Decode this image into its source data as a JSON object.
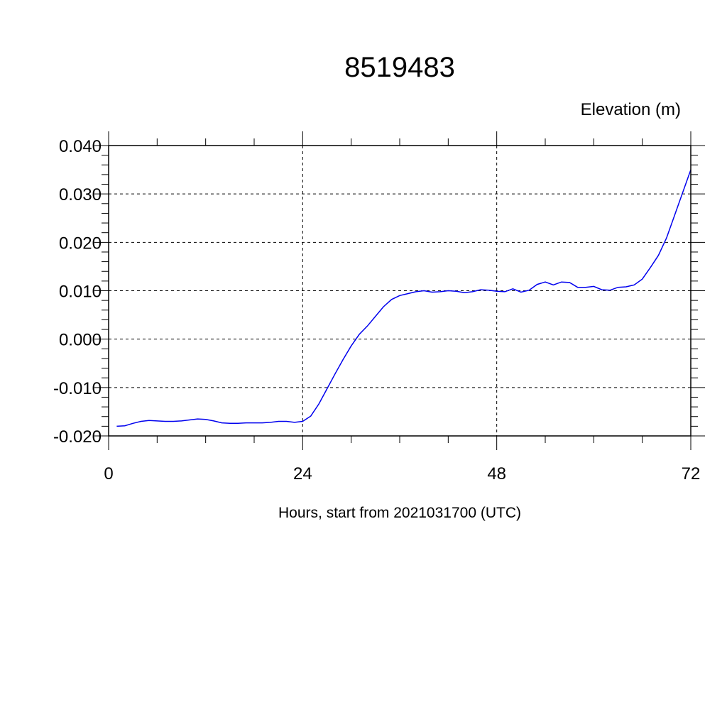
{
  "chart_data": {
    "type": "line",
    "title": "8519483",
    "ylabel": "Elevation (m)",
    "xlabel": "Hours, start from 2021031700 (UTC)",
    "xlim": [
      0,
      72
    ],
    "ylim": [
      -0.02,
      0.04
    ],
    "xticks": [
      0,
      24,
      48,
      72
    ],
    "xtick_labels": [
      "0",
      "24",
      "48",
      "72"
    ],
    "yticks": [
      -0.02,
      -0.01,
      0.0,
      0.01,
      0.02,
      0.03,
      0.04
    ],
    "ytick_labels": [
      "-0.020",
      "-0.010",
      "0.000",
      "0.010",
      "0.020",
      "0.030",
      "0.040"
    ],
    "grid": true,
    "line_color": "#0000ee",
    "series": [
      {
        "x": [
          1,
          2,
          3,
          4,
          5,
          6,
          7,
          8,
          9,
          10,
          11,
          12,
          13,
          14,
          15,
          16,
          17,
          18,
          19,
          20,
          21,
          22,
          23,
          24,
          25,
          26,
          27,
          28,
          29,
          30,
          31,
          32,
          33,
          34,
          35,
          36,
          37,
          38,
          39,
          40,
          41,
          42,
          43,
          44,
          45,
          46,
          47,
          48,
          49,
          50,
          51,
          52,
          53,
          54,
          55,
          56,
          57,
          58,
          59,
          60,
          61,
          62,
          63,
          64,
          65,
          66,
          67,
          68,
          69,
          70,
          71,
          72
        ],
        "y": [
          -0.018,
          -0.0179,
          -0.0174,
          -0.017,
          -0.0168,
          -0.0169,
          -0.017,
          -0.017,
          -0.0169,
          -0.0167,
          -0.0165,
          -0.0166,
          -0.0169,
          -0.0173,
          -0.0174,
          -0.0174,
          -0.0173,
          -0.0173,
          -0.0173,
          -0.0172,
          -0.017,
          -0.017,
          -0.0172,
          -0.017,
          -0.0159,
          -0.0134,
          -0.0103,
          -0.0072,
          -0.0042,
          -0.0014,
          0.001,
          0.0027,
          0.0047,
          0.0067,
          0.0082,
          0.009,
          0.0094,
          0.0098,
          0.01,
          0.0097,
          0.0098,
          0.01,
          0.0099,
          0.0096,
          0.0098,
          0.0102,
          0.0101,
          0.0099,
          0.0098,
          0.0104,
          0.0097,
          0.0101,
          0.0113,
          0.0118,
          0.0112,
          0.0118,
          0.0117,
          0.0107,
          0.0107,
          0.0109,
          0.0102,
          0.0101,
          0.0107,
          0.0108,
          0.0112,
          0.0124,
          0.0148,
          0.0173,
          0.0209,
          0.0256,
          0.0303,
          0.035
        ]
      }
    ]
  }
}
